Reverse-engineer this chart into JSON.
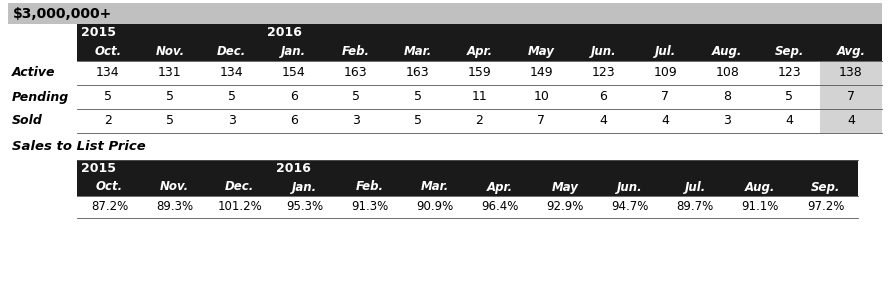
{
  "title": "$3,000,000+",
  "title_bg": "#c0c0c0",
  "header_bg": "#1a1a1a",
  "cell_bg_avg": "#d3d3d3",
  "month_row": [
    "Oct.",
    "Nov.",
    "Dec.",
    "Jan.",
    "Feb.",
    "Mar.",
    "Apr.",
    "May",
    "Jun.",
    "Jul.",
    "Aug.",
    "Sep.",
    "Avg."
  ],
  "rows": [
    {
      "label": "Active",
      "values": [
        "134",
        "131",
        "134",
        "154",
        "163",
        "163",
        "159",
        "149",
        "123",
        "109",
        "108",
        "123",
        "138"
      ]
    },
    {
      "label": "Pending",
      "values": [
        "5",
        "5",
        "5",
        "6",
        "5",
        "5",
        "11",
        "10",
        "6",
        "7",
        "8",
        "5",
        "7"
      ]
    },
    {
      "label": "Sold",
      "values": [
        "2",
        "5",
        "3",
        "6",
        "3",
        "5",
        "2",
        "7",
        "4",
        "4",
        "3",
        "4",
        "4"
      ]
    }
  ],
  "sales_label": "Sales to List Price",
  "sales_months": [
    "Oct.",
    "Nov.",
    "Dec.",
    "Jan.",
    "Feb.",
    "Mar.",
    "Apr.",
    "May",
    "Jun.",
    "Jul.",
    "Aug.",
    "Sep."
  ],
  "sales_values": [
    "87.2%",
    "89.3%",
    "101.2%",
    "95.3%",
    "91.3%",
    "90.9%",
    "96.4%",
    "92.9%",
    "94.7%",
    "89.7%",
    "91.1%",
    "97.2%"
  ]
}
